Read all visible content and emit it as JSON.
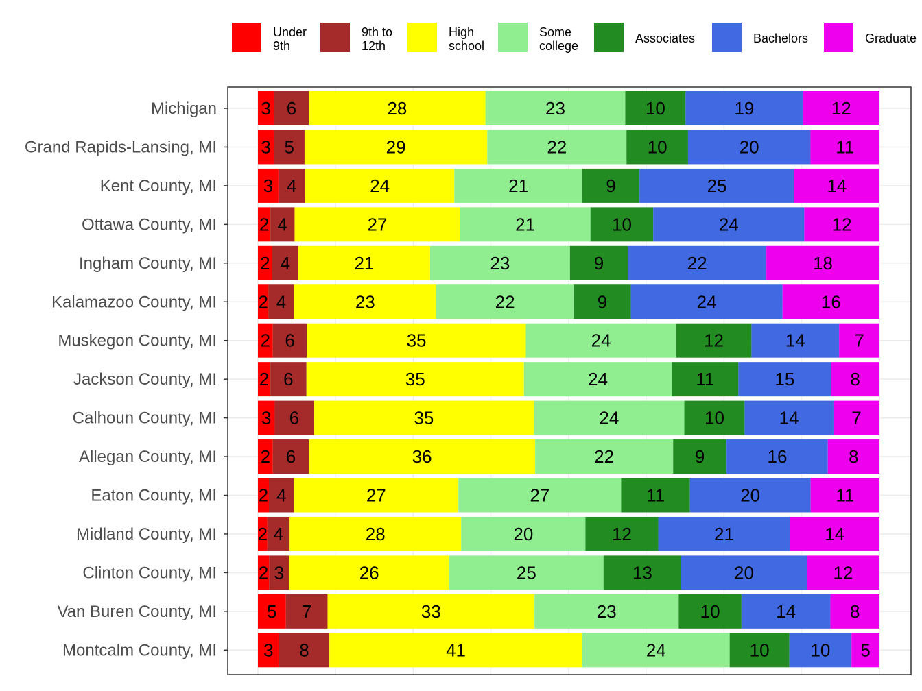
{
  "chart_data": {
    "type": "bar",
    "orientation": "horizontal",
    "stacked": true,
    "legend_position": "top",
    "grid": true,
    "xlim": [
      0,
      100
    ],
    "categories": [
      "Michigan",
      "Grand Rapids-Lansing, MI",
      "Kent County, MI",
      "Ottawa County, MI",
      "Ingham County, MI",
      "Kalamazoo County, MI",
      "Muskegon County, MI",
      "Jackson County, MI",
      "Calhoun County, MI",
      "Allegan County, MI",
      "Eaton County, MI",
      "Midland County, MI",
      "Clinton County, MI",
      "Van Buren County, MI",
      "Montcalm County, MI"
    ],
    "series": [
      {
        "name": "Under 9th",
        "legend_lines": [
          "Under",
          "9th"
        ],
        "color": "#ff0000",
        "values": [
          2.6,
          2.6,
          3.3,
          2.0,
          2.3,
          1.7,
          2.4,
          2.0,
          2.7,
          2.4,
          1.8,
          1.5,
          1.8,
          4.5,
          3.4
        ]
      },
      {
        "name": "9th to 12th",
        "legend_lines": [
          "9th to",
          "12th"
        ],
        "color": "#a52a2a",
        "values": [
          5.6,
          4.9,
          4.3,
          3.9,
          4.2,
          4.1,
          5.5,
          5.8,
          6.3,
          5.8,
          4.1,
          3.6,
          3.2,
          6.7,
          8.1
        ]
      },
      {
        "name": "High school",
        "legend_lines": [
          "High",
          "school"
        ],
        "color": "#ffff00",
        "values": [
          28.4,
          29.4,
          24.0,
          26.6,
          21.2,
          22.9,
          35.2,
          35.0,
          35.4,
          36.4,
          27.0,
          27.6,
          25.8,
          33.3,
          40.7
        ]
      },
      {
        "name": "Some college",
        "legend_lines": [
          "Some",
          "college"
        ],
        "color": "#90ee90",
        "values": [
          22.5,
          22.4,
          20.6,
          21.0,
          22.5,
          22.1,
          24.2,
          23.8,
          24.2,
          22.2,
          26.7,
          20.0,
          24.8,
          23.2,
          23.7
        ]
      },
      {
        "name": "Associates",
        "legend_lines": [
          "Associates"
        ],
        "color": "#228b22",
        "values": [
          9.7,
          9.9,
          9.2,
          10.1,
          9.3,
          9.2,
          12.1,
          10.7,
          9.7,
          8.6,
          11.3,
          11.7,
          12.5,
          10.1,
          9.6
        ]
      },
      {
        "name": "Bachelors",
        "legend_lines": [
          "Bachelors"
        ],
        "color": "#4169e1",
        "values": [
          18.9,
          19.7,
          24.9,
          24.3,
          22.3,
          24.4,
          14.1,
          14.9,
          14.3,
          16.3,
          19.8,
          21.2,
          20.2,
          14.3,
          10.0
        ]
      },
      {
        "name": "Graduate",
        "legend_lines": [
          "Graduate"
        ],
        "color": "#ee00ee",
        "values": [
          12.3,
          11.1,
          13.7,
          12.1,
          18.2,
          15.6,
          6.5,
          7.8,
          7.4,
          8.3,
          11.3,
          14.4,
          11.7,
          7.9,
          4.5
        ]
      }
    ]
  }
}
